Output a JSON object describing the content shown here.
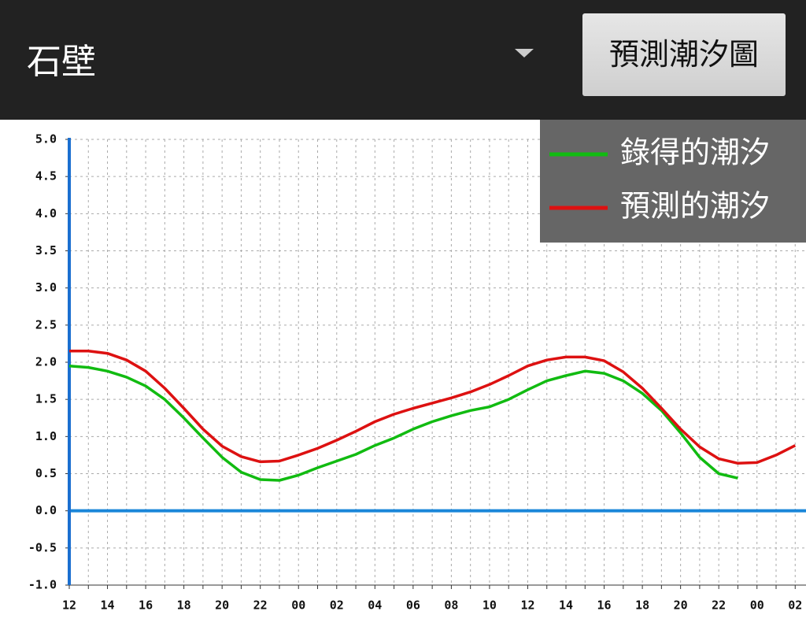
{
  "header": {
    "station": "石壁",
    "button": "預測潮汐圖"
  },
  "chart_data": {
    "type": "line",
    "categories": [
      "12",
      null,
      "14",
      null,
      "16",
      null,
      "18",
      null,
      "20",
      null,
      "22",
      null,
      "00",
      null,
      "02",
      null,
      "04",
      null,
      "06",
      null,
      "08",
      null,
      "10",
      null,
      "12",
      null,
      "14",
      null,
      "16",
      null,
      "18",
      null,
      "20",
      null,
      "22",
      null,
      "00",
      null,
      "02"
    ],
    "series": [
      {
        "name": "錄得的潮汐",
        "color": "#11bb11",
        "values": [
          1.95,
          1.93,
          1.88,
          1.8,
          1.68,
          1.5,
          1.25,
          0.98,
          0.72,
          0.52,
          0.42,
          0.41,
          0.48,
          0.58,
          0.67,
          0.76,
          0.88,
          0.98,
          1.1,
          1.2,
          1.28,
          1.35,
          1.4,
          1.5,
          1.63,
          1.75,
          1.82,
          1.88,
          1.85,
          1.75,
          1.58,
          1.35,
          1.05,
          0.72,
          0.5,
          0.44,
          null,
          null,
          null
        ]
      },
      {
        "name": "預測的潮汐",
        "color": "#dd1111",
        "values": [
          2.15,
          2.15,
          2.12,
          2.03,
          1.88,
          1.65,
          1.38,
          1.1,
          0.87,
          0.73,
          0.66,
          0.67,
          0.75,
          0.84,
          0.95,
          1.07,
          1.2,
          1.3,
          1.38,
          1.45,
          1.52,
          1.6,
          1.7,
          1.82,
          1.95,
          2.03,
          2.07,
          2.07,
          2.02,
          1.87,
          1.65,
          1.38,
          1.1,
          0.86,
          0.7,
          0.64,
          0.65,
          0.75,
          0.88
        ]
      }
    ],
    "ylim": [
      -1,
      5
    ],
    "yticks": [
      {
        "value": -1,
        "label": "-1.0"
      },
      {
        "value": -0.5,
        "label": "-0.5"
      },
      {
        "value": 0,
        "label": "0.0"
      },
      {
        "value": 0.5,
        "label": "0.5"
      },
      {
        "value": 1,
        "label": "1.0"
      },
      {
        "value": 1.5,
        "label": "1.5"
      },
      {
        "value": 2,
        "label": "2.0"
      },
      {
        "value": 2.5,
        "label": "2.5"
      },
      {
        "value": 3,
        "label": "3.0"
      },
      {
        "value": 3.5,
        "label": "3.5"
      },
      {
        "value": 4,
        "label": "4.0"
      },
      {
        "value": 4.5,
        "label": "4.5"
      },
      {
        "value": 5,
        "label": "5.0"
      }
    ],
    "grid": true
  }
}
